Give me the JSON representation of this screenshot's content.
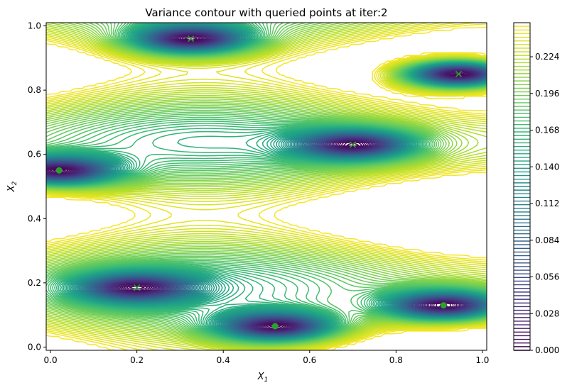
{
  "chart_data": {
    "type": "contour",
    "title": "Variance contour with queried points at iter:2",
    "xlabel": "X",
    "xlabel_sub": "1",
    "ylabel": "X",
    "ylabel_sub": "2",
    "xlim": [
      -0.01,
      1.01
    ],
    "ylim": [
      -0.01,
      1.01
    ],
    "xticks": [
      "0.0",
      "0.2",
      "0.4",
      "0.6",
      "0.8",
      "1.0"
    ],
    "yticks": [
      "0.0",
      "0.2",
      "0.4",
      "0.6",
      "0.8",
      "1.0"
    ],
    "colormap": "viridis",
    "colorbar": {
      "min": 0.0,
      "max": 0.25,
      "levels": 90,
      "ticks": [
        "0.000",
        "0.028",
        "0.056",
        "0.084",
        "0.112",
        "0.140",
        "0.168",
        "0.196",
        "0.224"
      ]
    },
    "points_dot": [
      {
        "x": 0.02,
        "y": 0.55
      },
      {
        "x": 0.52,
        "y": 0.065
      },
      {
        "x": 0.91,
        "y": 0.13
      }
    ],
    "points_cross": [
      {
        "x": 0.325,
        "y": 0.96
      },
      {
        "x": 0.7,
        "y": 0.63
      },
      {
        "x": 0.945,
        "y": 0.85
      },
      {
        "x": 0.2,
        "y": 0.185
      }
    ],
    "marker_color": "#2ca02c"
  }
}
